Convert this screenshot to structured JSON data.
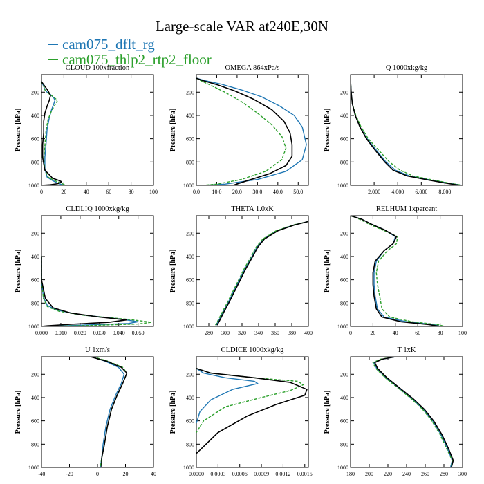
{
  "figure": {
    "title": "Large-scale VAR at240E,30N",
    "legend": [
      {
        "label": "cam075_dflt_rg",
        "color": "#1f77b4"
      },
      {
        "label": "cam075_thlp2_rtp2_floor",
        "color": "#2ca02c"
      }
    ],
    "colors": {
      "obs": "#000000",
      "dflt": "#1f77b4",
      "thlp2": "#2ca02c"
    }
  },
  "chart_data": [
    {
      "type": "line",
      "title": "CLOUD  100xfraction",
      "ylabel": "Pressure [hPa]",
      "xlim": [
        0,
        100
      ],
      "xticks": [
        "0",
        "20",
        "40",
        "60",
        "80",
        "100"
      ],
      "ylim": [
        1000,
        50
      ],
      "yticks": [
        "200",
        "400",
        "600",
        "800",
        "1000"
      ],
      "series": [
        {
          "key": "dflt",
          "style": "solid",
          "x": [
            0,
            2,
            3,
            5,
            8,
            11,
            12,
            11,
            9,
            7,
            5,
            4,
            3,
            3,
            5,
            10,
            14,
            20
          ],
          "y": [
            110,
            150,
            180,
            200,
            220,
            250,
            270,
            300,
            350,
            420,
            520,
            650,
            760,
            860,
            930,
            960,
            980,
            1000
          ]
        },
        {
          "key": "thlp2",
          "style": "dashed",
          "x": [
            0,
            2,
            3,
            6,
            10,
            13,
            14,
            12,
            9,
            6,
            4,
            3,
            2,
            3,
            6,
            12,
            17,
            22
          ],
          "y": [
            110,
            150,
            180,
            210,
            235,
            260,
            280,
            310,
            360,
            430,
            530,
            660,
            770,
            870,
            930,
            960,
            980,
            1000
          ]
        },
        {
          "key": "obs",
          "style": "solid",
          "x": [
            0,
            3,
            6,
            8,
            7,
            5,
            3,
            2,
            2,
            1,
            1,
            3,
            10,
            16,
            18,
            15,
            8,
            0
          ],
          "y": [
            110,
            150,
            190,
            230,
            270,
            320,
            380,
            450,
            550,
            650,
            760,
            870,
            940,
            960,
            970,
            985,
            995,
            1000
          ]
        }
      ]
    },
    {
      "type": "line",
      "title": "OMEGA  864xPa/s",
      "ylabel": "Pressure [hPa]",
      "xlim": [
        0,
        55
      ],
      "xticks": [
        "0.0",
        "10.0",
        "20.0",
        "30.0",
        "40.0",
        "50.0"
      ],
      "ylim": [
        1000,
        50
      ],
      "yticks": [
        "200",
        "400",
        "600",
        "800",
        "1000"
      ],
      "series": [
        {
          "key": "dflt",
          "style": "solid",
          "x": [
            0,
            4,
            12,
            22,
            32,
            41,
            48,
            52,
            54,
            52,
            44,
            30,
            14,
            4
          ],
          "y": [
            80,
            100,
            130,
            180,
            240,
            320,
            400,
            500,
            650,
            780,
            880,
            950,
            990,
            1000
          ]
        },
        {
          "key": "thlp2",
          "style": "dashed",
          "x": [
            0,
            2,
            7,
            14,
            22,
            30,
            37,
            42,
            44,
            42,
            34,
            22,
            10,
            3
          ],
          "y": [
            80,
            100,
            140,
            200,
            280,
            380,
            480,
            580,
            680,
            780,
            880,
            950,
            990,
            1000
          ]
        },
        {
          "key": "obs",
          "style": "solid",
          "x": [
            0,
            3,
            10,
            19,
            28,
            37,
            43,
            46,
            47,
            47,
            44,
            36,
            25,
            18
          ],
          "y": [
            80,
            100,
            135,
            190,
            260,
            350,
            450,
            550,
            650,
            750,
            830,
            900,
            960,
            1000
          ]
        }
      ]
    },
    {
      "type": "line",
      "title": "Q  1000xkg/kg",
      "ylabel": "Pressure [hPa]",
      "xlim": [
        0,
        9.5
      ],
      "xticks": [
        "2.000",
        "4.000",
        "6.000",
        "8.000"
      ],
      "ylim": [
        1000,
        50
      ],
      "yticks": [
        "200",
        "400",
        "600",
        "800",
        "1000"
      ],
      "series": [
        {
          "key": "dflt",
          "style": "solid",
          "x": [
            0.0,
            0.05,
            0.15,
            0.4,
            0.8,
            1.4,
            2.2,
            3.0,
            3.8,
            5.0,
            6.8,
            8.5,
            9.5
          ],
          "y": [
            100,
            200,
            300,
            400,
            500,
            600,
            700,
            800,
            870,
            920,
            955,
            985,
            1000
          ]
        },
        {
          "key": "thlp2",
          "style": "dashed",
          "x": [
            0.0,
            0.05,
            0.15,
            0.45,
            0.9,
            1.5,
            2.4,
            3.3,
            4.2,
            5.3,
            7.0,
            8.6,
            9.5
          ],
          "y": [
            100,
            200,
            300,
            400,
            500,
            600,
            700,
            800,
            870,
            920,
            955,
            985,
            1000
          ]
        },
        {
          "key": "obs",
          "style": "solid",
          "x": [
            0.0,
            0.05,
            0.15,
            0.4,
            0.8,
            1.35,
            2.1,
            2.9,
            3.6,
            4.8,
            6.6,
            8.3,
            9.3
          ],
          "y": [
            100,
            200,
            300,
            400,
            500,
            600,
            700,
            800,
            870,
            920,
            955,
            985,
            1000
          ]
        }
      ]
    },
    {
      "type": "line",
      "title": "CLDLIQ  1000xkg/kg",
      "ylabel": "Pressure [hPa]",
      "xlim": [
        0,
        0.058
      ],
      "xticks": [
        "0.000",
        "0.010",
        "0.020",
        "0.030",
        "0.040",
        "0.050"
      ],
      "ylim": [
        1000,
        50
      ],
      "yticks": [
        "200",
        "400",
        "600",
        "800",
        "1000"
      ],
      "series": [
        {
          "key": "dflt",
          "style": "solid",
          "x": [
            0,
            0,
            0.001,
            0.003,
            0.008,
            0.02,
            0.04,
            0.05,
            0.045,
            0.02,
            0.005,
            0
          ],
          "y": [
            400,
            600,
            750,
            820,
            860,
            900,
            935,
            960,
            975,
            990,
            998,
            1000
          ]
        },
        {
          "key": "thlp2",
          "style": "dashed",
          "x": [
            0,
            0,
            0.001,
            0.003,
            0.009,
            0.022,
            0.045,
            0.057,
            0.05,
            0.025,
            0.006,
            0
          ],
          "y": [
            400,
            600,
            760,
            830,
            870,
            905,
            940,
            965,
            980,
            992,
            998,
            1000
          ]
        },
        {
          "key": "obs",
          "style": "solid",
          "x": [
            0,
            0,
            0.002,
            0.006,
            0.015,
            0.03,
            0.044,
            0.035,
            0.015,
            0.003,
            0
          ],
          "y": [
            400,
            600,
            760,
            840,
            885,
            920,
            945,
            965,
            982,
            995,
            1000
          ]
        }
      ]
    },
    {
      "type": "line",
      "title": "THETA  1.0xK",
      "ylabel": "Pressure [hPa]",
      "xlim": [
        265,
        400
      ],
      "xticks": [
        "280",
        "300",
        "320",
        "340",
        "360",
        "380",
        "400"
      ],
      "ylim": [
        1000,
        50
      ],
      "yticks": [
        "200",
        "400",
        "600",
        "800",
        "1000"
      ],
      "series": [
        {
          "key": "dflt",
          "style": "solid",
          "x": [
            289,
            292,
            297,
            303,
            310,
            317,
            324,
            332,
            338,
            346,
            362,
            382,
            400
          ],
          "y": [
            990,
            950,
            880,
            800,
            700,
            600,
            500,
            400,
            320,
            250,
            180,
            130,
            100
          ]
        },
        {
          "key": "thlp2",
          "style": "dashed",
          "x": [
            288,
            291,
            296,
            302,
            309,
            316,
            323,
            331,
            337,
            345,
            361,
            381,
            400
          ],
          "y": [
            990,
            950,
            880,
            800,
            700,
            600,
            500,
            400,
            320,
            250,
            180,
            130,
            100
          ]
        },
        {
          "key": "obs",
          "style": "solid",
          "x": [
            290,
            293,
            298,
            304,
            311,
            318,
            325,
            333,
            339,
            347,
            363,
            383,
            400
          ],
          "y": [
            990,
            950,
            880,
            800,
            700,
            600,
            500,
            400,
            320,
            250,
            180,
            130,
            100
          ]
        }
      ]
    },
    {
      "type": "line",
      "title": "RELHUM  1xpercent",
      "ylabel": "Pressure [hPa]",
      "xlim": [
        0,
        100
      ],
      "xticks": [
        "0",
        "20",
        "40",
        "60",
        "80",
        "100"
      ],
      "ylim": [
        1000,
        50
      ],
      "yticks": [
        "200",
        "400",
        "600",
        "800",
        "1000"
      ],
      "series": [
        {
          "key": "dflt",
          "style": "solid",
          "x": [
            0,
            10,
            18,
            30,
            40,
            38,
            30,
            23,
            21,
            21,
            22,
            24,
            30,
            50,
            75,
            80
          ],
          "y": [
            50,
            80,
            120,
            170,
            230,
            290,
            350,
            440,
            540,
            640,
            740,
            850,
            920,
            960,
            985,
            1000
          ]
        },
        {
          "key": "thlp2",
          "style": "dashed",
          "x": [
            0,
            8,
            16,
            28,
            42,
            41,
            33,
            25,
            23,
            24,
            26,
            28,
            35,
            55,
            78,
            84
          ],
          "y": [
            50,
            80,
            120,
            170,
            230,
            290,
            350,
            440,
            540,
            640,
            740,
            850,
            920,
            960,
            985,
            1000
          ]
        },
        {
          "key": "obs",
          "style": "solid",
          "x": [
            0,
            10,
            18,
            30,
            41,
            38,
            30,
            22,
            20,
            20,
            21,
            23,
            28,
            45,
            70,
            80
          ],
          "y": [
            50,
            80,
            120,
            170,
            230,
            290,
            350,
            440,
            540,
            640,
            740,
            850,
            920,
            960,
            985,
            1000
          ]
        }
      ]
    },
    {
      "type": "line",
      "title": "U  1xm/s",
      "ylabel": "Pressure [hPa]",
      "xlim": [
        -40,
        40
      ],
      "xticks": [
        "-40",
        "-20",
        "0",
        "20",
        "40"
      ],
      "ylim": [
        1000,
        50
      ],
      "yticks": [
        "200",
        "400",
        "600",
        "800",
        "1000"
      ],
      "series": [
        {
          "key": "dflt",
          "style": "solid",
          "x": [
            -4,
            6,
            15,
            19,
            17,
            13,
            9,
            6,
            4,
            3,
            2
          ],
          "y": [
            50,
            90,
            140,
            200,
            280,
            380,
            500,
            650,
            800,
            920,
            1000
          ]
        },
        {
          "key": "thlp2",
          "style": "dashed",
          "x": [
            -3,
            8,
            18,
            21,
            18,
            14,
            10,
            7,
            5,
            3,
            2
          ],
          "y": [
            50,
            90,
            140,
            190,
            280,
            380,
            500,
            650,
            800,
            920,
            1000
          ]
        },
        {
          "key": "obs",
          "style": "solid",
          "x": [
            -5,
            7,
            17,
            21,
            18,
            14,
            10,
            7,
            5,
            3,
            3
          ],
          "y": [
            50,
            90,
            140,
            190,
            280,
            380,
            500,
            650,
            800,
            920,
            1000
          ]
        }
      ]
    },
    {
      "type": "line",
      "title": "CLDICE  1000xkg/kg",
      "ylabel": "Pressure [hPa]",
      "xlim": [
        0,
        0.00155
      ],
      "xticks": [
        "0.0000",
        "0.0003",
        "0.0006",
        "0.0009",
        "0.0012",
        "0.0015"
      ],
      "ylim": [
        1000,
        50
      ],
      "yticks": [
        "200",
        "400",
        "600",
        "800",
        "1000"
      ],
      "series": [
        {
          "key": "dflt",
          "style": "solid",
          "x": [
            0,
            0.0001,
            0.0004,
            0.0008,
            0.00085,
            0.0005,
            0.0002,
            5e-05,
            0
          ],
          "y": [
            150,
            190,
            230,
            260,
            280,
            330,
            420,
            520,
            620
          ]
        },
        {
          "key": "thlp2",
          "style": "dashed",
          "x": [
            0,
            0.0002,
            0.0008,
            0.0014,
            0.00148,
            0.0013,
            0.0009,
            0.0004,
            0.0001,
            0
          ],
          "y": [
            150,
            190,
            230,
            260,
            290,
            340,
            400,
            480,
            600,
            700
          ]
        },
        {
          "key": "obs",
          "style": "solid",
          "x": [
            0,
            0.0002,
            0.0008,
            0.0013,
            0.00153,
            0.0015,
            0.0011,
            0.0007,
            0.0003,
            0
          ],
          "y": [
            150,
            190,
            230,
            270,
            330,
            380,
            460,
            560,
            700,
            880
          ]
        }
      ]
    },
    {
      "type": "line",
      "title": "T  1xK",
      "ylabel": "Pressure [hPa]",
      "xlim": [
        180,
        300
      ],
      "xticks": [
        "180",
        "200",
        "220",
        "240",
        "260",
        "280",
        "300"
      ],
      "ylim": [
        1000,
        50
      ],
      "yticks": [
        "200",
        "400",
        "600",
        "800",
        "1000"
      ],
      "series": [
        {
          "key": "dflt",
          "style": "solid",
          "x": [
            228,
            214,
            205,
            208,
            218,
            232,
            246,
            258,
            268,
            277,
            284,
            289,
            287
          ],
          "y": [
            50,
            70,
            100,
            150,
            230,
            320,
            410,
            500,
            600,
            720,
            840,
            940,
            1000
          ]
        },
        {
          "key": "thlp2",
          "style": "dashed",
          "x": [
            227,
            212,
            204,
            207,
            217,
            231,
            245,
            257,
            267,
            276,
            283,
            289,
            288
          ],
          "y": [
            50,
            70,
            100,
            150,
            230,
            320,
            410,
            500,
            600,
            720,
            840,
            940,
            1000
          ]
        },
        {
          "key": "obs",
          "style": "solid",
          "x": [
            228,
            214,
            206,
            209,
            219,
            233,
            247,
            259,
            269,
            278,
            285,
            290,
            288
          ],
          "y": [
            50,
            70,
            100,
            150,
            230,
            320,
            410,
            500,
            600,
            720,
            840,
            940,
            1000
          ]
        }
      ]
    }
  ]
}
